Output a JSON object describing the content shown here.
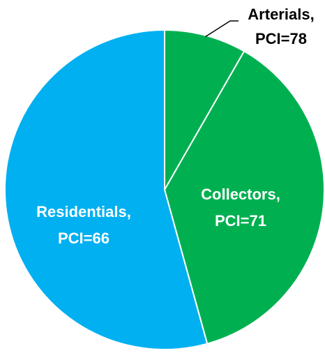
{
  "chart_data": {
    "type": "pie",
    "categories": [
      "Arterials,",
      "Collectors,",
      "Residentials,"
    ],
    "annotations": [
      "PCI=78",
      "PCI=71",
      "PCI=66"
    ],
    "values": [
      8.3,
      37.4,
      54.3
    ],
    "colors": [
      "#00b050",
      "#00b050",
      "#00b0f0"
    ],
    "label_colors": [
      "#000000",
      "#ffffff",
      "#ffffff"
    ]
  }
}
